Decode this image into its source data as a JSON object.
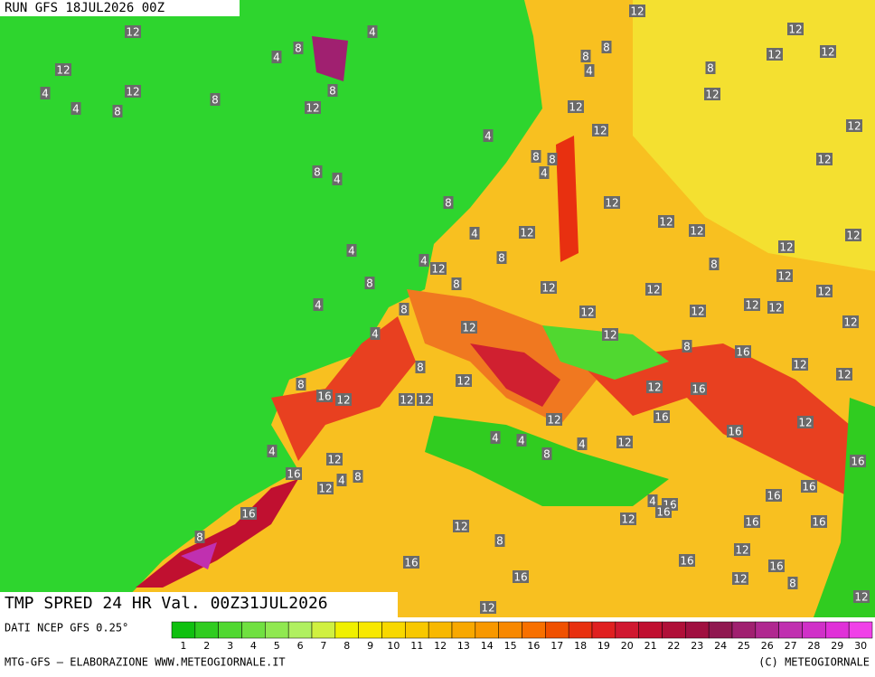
{
  "header": {
    "run": "RUN GFS 18JUL2026 00Z",
    "title": "TMP SPRED 24 HR Val. 00Z31JUL2026",
    "source": "DATI NCEP GFS 0.25°",
    "credit": "MTG-GFS — ELABORAZIONE WWW.METEOGIORNALE.IT",
    "copyright": "(C) METEOGIORNALE"
  },
  "legend": {
    "values": [
      1,
      2,
      3,
      4,
      5,
      6,
      7,
      8,
      9,
      10,
      11,
      12,
      13,
      14,
      15,
      16,
      17,
      18,
      19,
      20,
      21,
      22,
      23,
      24,
      25,
      26,
      27,
      28,
      29,
      30
    ],
    "colors": [
      "#10c010",
      "#30cc20",
      "#50d830",
      "#70e040",
      "#90e850",
      "#b0f060",
      "#d0f040",
      "#f0f000",
      "#f8e800",
      "#f8d800",
      "#f8c800",
      "#f8b800",
      "#f8a800",
      "#f89800",
      "#f88800",
      "#f87000",
      "#f05000",
      "#e83010",
      "#e02020",
      "#d01830",
      "#c01030",
      "#b01038",
      "#a01040",
      "#901850",
      "#a02070",
      "#b02890",
      "#c030b0",
      "#d030c8",
      "#e030d8",
      "#f040e8"
    ]
  },
  "contour_labels": [
    12,
    4,
    12,
    12,
    8,
    4,
    12,
    12,
    12,
    8,
    8,
    4,
    8,
    4,
    12,
    8,
    8,
    12,
    4,
    8,
    12,
    12,
    12,
    12,
    12,
    4,
    8,
    8,
    4,
    8,
    4,
    8,
    12,
    12,
    12,
    12,
    4,
    12,
    8,
    4,
    4,
    12,
    8,
    8,
    12,
    12,
    8,
    12,
    12,
    12,
    4,
    8,
    12,
    12,
    12,
    12,
    12,
    12,
    12,
    4,
    8,
    16,
    12,
    12,
    8,
    12,
    8,
    16,
    12,
    12,
    12,
    12,
    16,
    12,
    16,
    12,
    16,
    4,
    12,
    4,
    4,
    8,
    4,
    12,
    16,
    16,
    8,
    12,
    4,
    16,
    16,
    4,
    16,
    16,
    16,
    12,
    12,
    16,
    16,
    8,
    8,
    12,
    16,
    16,
    16,
    16,
    12,
    8,
    12,
    12
  ]
}
